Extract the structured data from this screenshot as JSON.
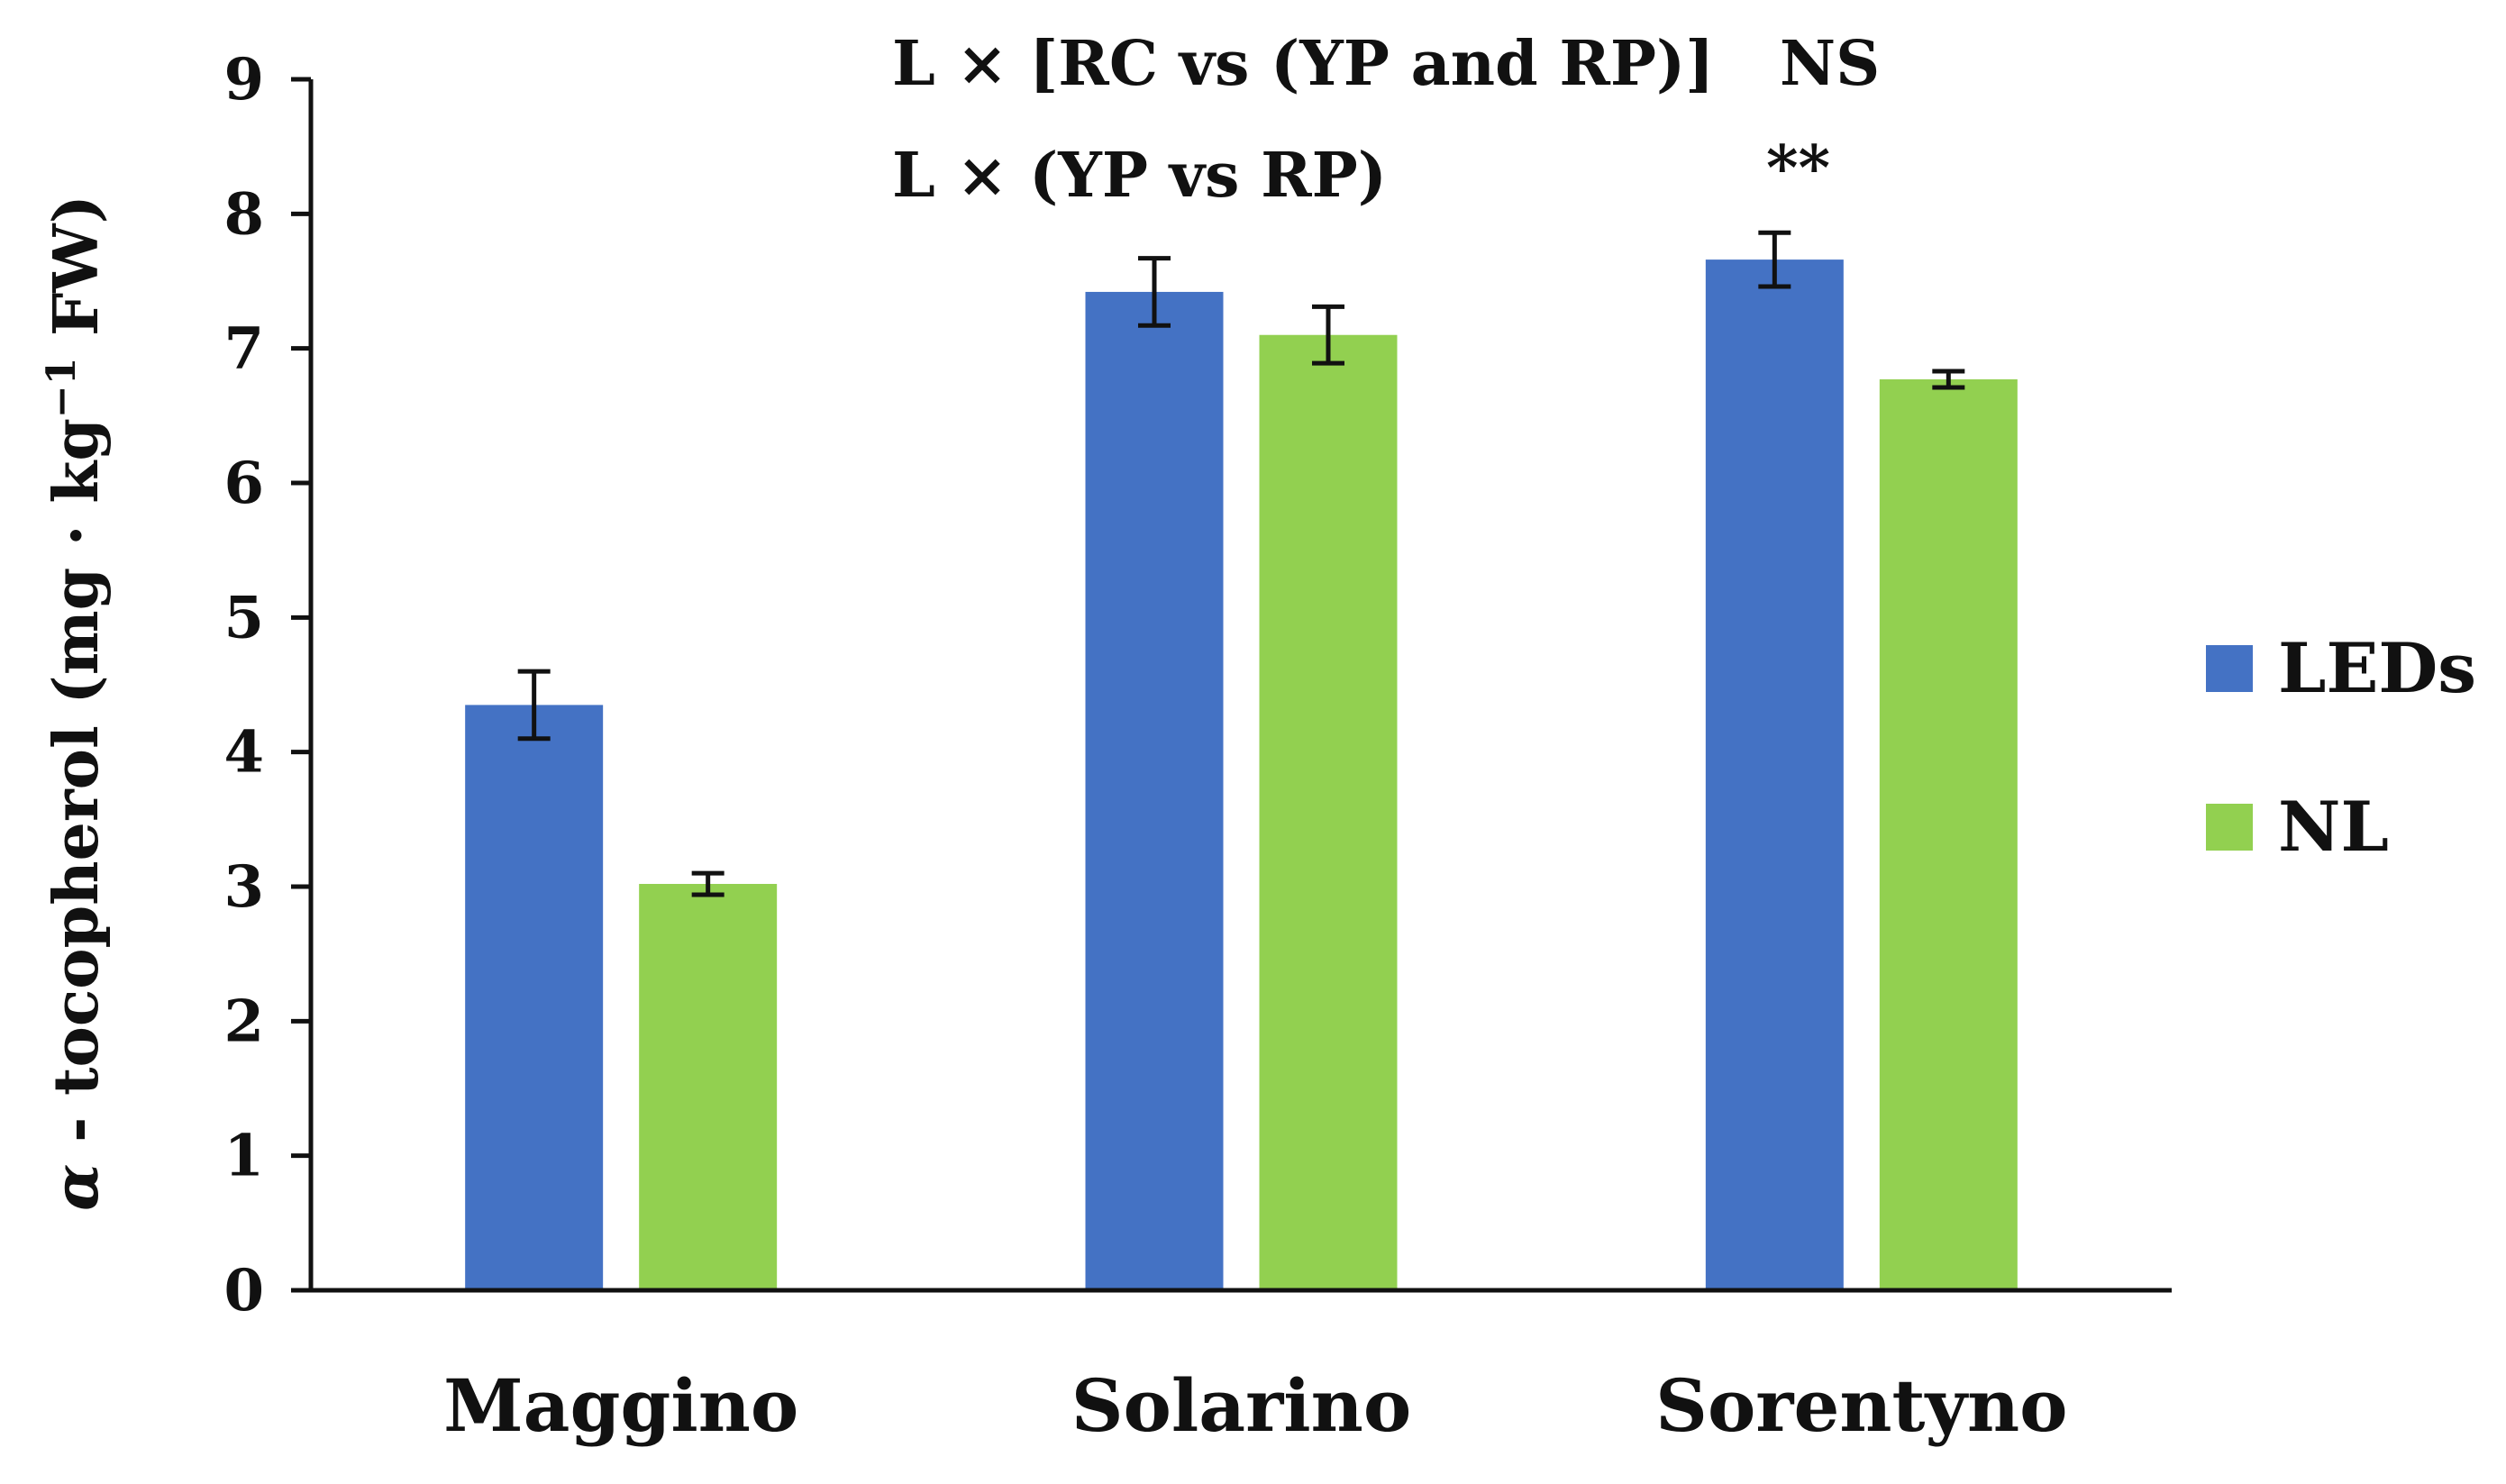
{
  "chart_data": {
    "type": "bar",
    "categories": [
      "Maggino",
      "Solarino",
      "Sorentyno"
    ],
    "series": [
      {
        "name": "LEDs",
        "color": "#4472C4",
        "values": [
          4.35,
          7.42,
          7.66
        ],
        "errors": [
          0.25,
          0.25,
          0.2
        ]
      },
      {
        "name": "NL",
        "color": "#92D050",
        "values": [
          3.02,
          7.1,
          6.77
        ],
        "errors": [
          0.08,
          0.21,
          0.06
        ]
      }
    ],
    "ylabel_parts": {
      "alpha": "α",
      "main": " - tocopherol (mg · kg",
      "sup": "−1",
      "unit": " FW)"
    },
    "ylim": [
      0,
      9
    ],
    "yticks": [
      "0",
      "1",
      "2",
      "3",
      "4",
      "5",
      "6",
      "7",
      "8",
      "9"
    ],
    "legend_position": "right",
    "annotations": [
      {
        "label": "L × [RC vs (YP and RP)]",
        "significance": "NS"
      },
      {
        "label": "L × (YP vs RP)",
        "significance": "**"
      }
    ]
  }
}
